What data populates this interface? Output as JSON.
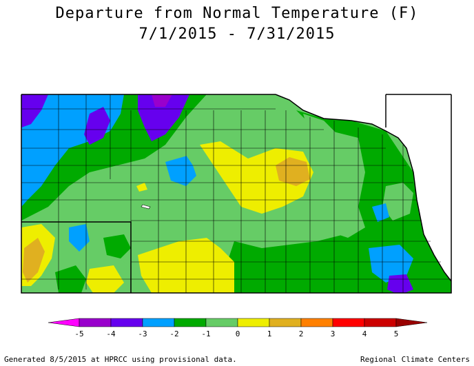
{
  "title": "Departure from Normal Temperature (F)",
  "subtitle": "7/1/2015 - 7/31/2015",
  "legend": {
    "colors": [
      "#ff00ff",
      "#9900cc",
      "#6600ee",
      "#00a0ff",
      "#00aa00",
      "#66cc66",
      "#eeee00",
      "#e0b020",
      "#ff8000",
      "#ff0000",
      "#cc0000",
      "#990000"
    ],
    "labels": [
      "-5",
      "-4",
      "-3",
      "-2",
      "-1",
      "0",
      "1",
      "2",
      "3",
      "4",
      "5"
    ]
  },
  "footer_left": "Generated 8/5/2015 at HPRCC using provisional data.",
  "footer_right": "Regional Climate Centers"
}
